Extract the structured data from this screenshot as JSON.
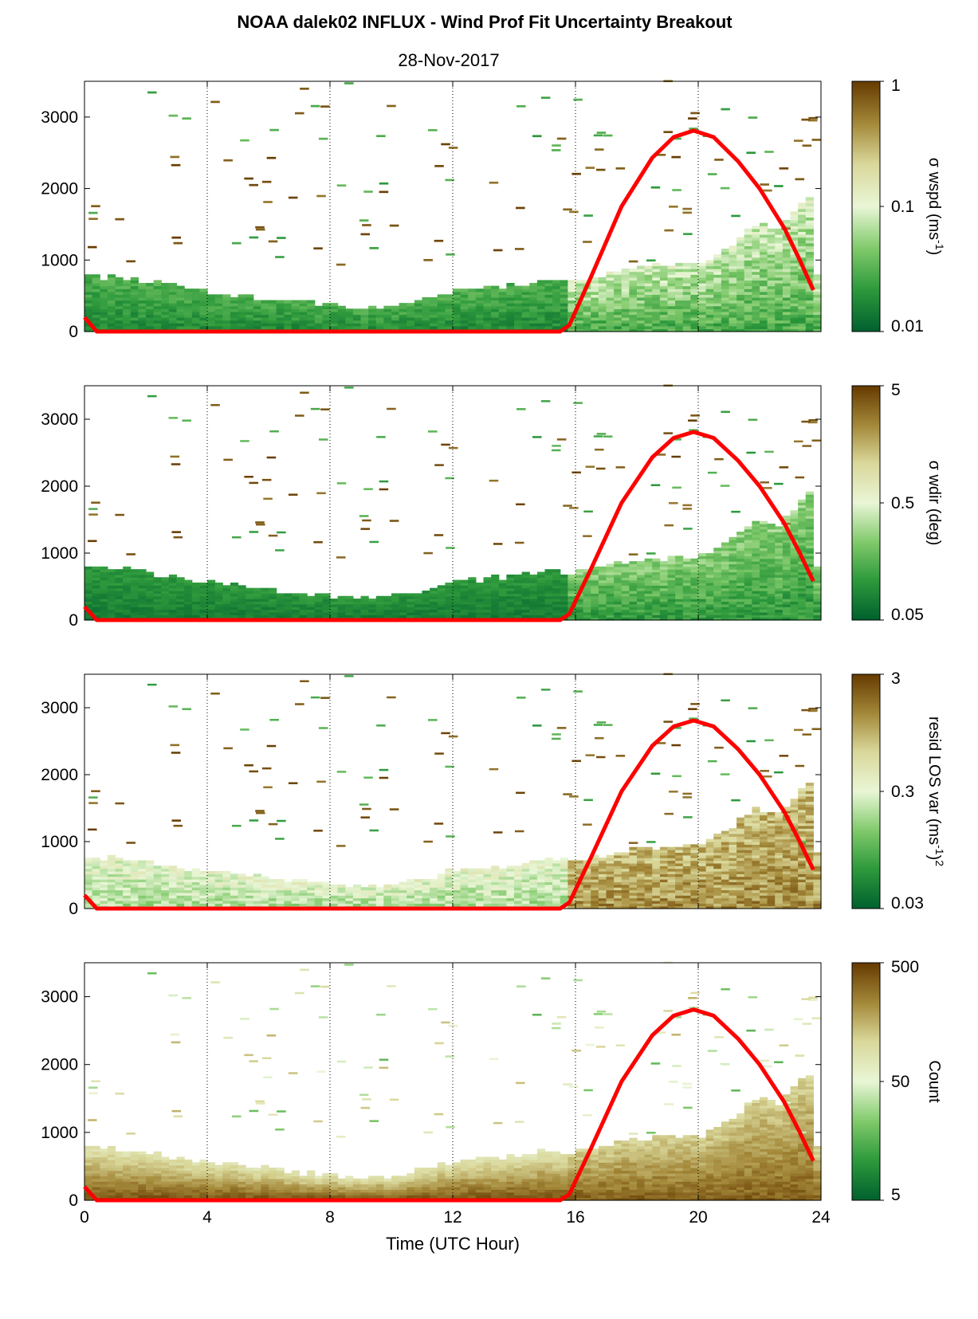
{
  "title": "NOAA dalek02 INFLUX - Wind Prof Fit Uncertainty Breakout",
  "subtitle": "28-Nov-2017",
  "colors": {
    "sun_curve": "#ff0000",
    "colormap": [
      "#00602e",
      "#2e9a3c",
      "#7fc96a",
      "#e9f6d6",
      "#d9d79a",
      "#a4893a",
      "#653a00"
    ]
  },
  "chart_data": [
    {
      "type": "heatmap",
      "xlim": [
        0,
        24
      ],
      "ylim": [
        0,
        3500
      ],
      "x_ticks": [
        "0",
        "4",
        "8",
        "12",
        "16",
        "20",
        "24"
      ],
      "y_ticks": [
        "0",
        "1000",
        "2000",
        "3000"
      ],
      "vertical_gridlines": [
        4,
        8,
        12,
        16,
        20
      ],
      "colorbar": {
        "scale": "log",
        "ticks": [
          "1",
          "0.1",
          "0.01"
        ],
        "label_main": "σ wspd (ms",
        "label_sup": "-1",
        "label_tail": ")"
      },
      "sun_elevation_curve": {
        "x": [
          0.0,
          0.4,
          15.5,
          15.8,
          16.5,
          17.5,
          18.5,
          19.2,
          19.85,
          20.5,
          21.3,
          22.0,
          22.8,
          23.3,
          23.75
        ],
        "y": [
          200,
          0,
          0,
          90,
          760,
          1750,
          2430,
          2720,
          2810,
          2720,
          2380,
          2000,
          1450,
          1010,
          580
        ]
      }
    },
    {
      "type": "heatmap",
      "xlim": [
        0,
        24
      ],
      "ylim": [
        0,
        3500
      ],
      "x_ticks": [
        "0",
        "4",
        "8",
        "12",
        "16",
        "20",
        "24"
      ],
      "y_ticks": [
        "0",
        "1000",
        "2000",
        "3000"
      ],
      "vertical_gridlines": [
        4,
        8,
        12,
        16,
        20
      ],
      "colorbar": {
        "scale": "log",
        "ticks": [
          "5",
          "0.5",
          "0.05"
        ],
        "label_main": "σ wdir (deg)",
        "label_sup": "",
        "label_tail": ""
      },
      "sun_elevation_curve": {
        "x": [
          0.0,
          0.4,
          15.5,
          15.8,
          16.5,
          17.5,
          18.5,
          19.2,
          19.85,
          20.5,
          21.3,
          22.0,
          22.8,
          23.3,
          23.75
        ],
        "y": [
          200,
          0,
          0,
          90,
          760,
          1750,
          2430,
          2720,
          2810,
          2720,
          2380,
          2000,
          1450,
          1010,
          580
        ]
      }
    },
    {
      "type": "heatmap",
      "xlim": [
        0,
        24
      ],
      "ylim": [
        0,
        3500
      ],
      "x_ticks": [
        "0",
        "4",
        "8",
        "12",
        "16",
        "20",
        "24"
      ],
      "y_ticks": [
        "0",
        "1000",
        "2000",
        "3000"
      ],
      "vertical_gridlines": [
        4,
        8,
        12,
        16,
        20
      ],
      "colorbar": {
        "scale": "log",
        "ticks": [
          "3",
          "0.3",
          "0.03"
        ],
        "label_main": "resid LOS var (ms",
        "label_sup": "-1",
        "label_tail": ")",
        "label_sup2": "2"
      },
      "sun_elevation_curve": {
        "x": [
          0.0,
          0.4,
          15.5,
          15.8,
          16.5,
          17.5,
          18.5,
          19.2,
          19.85,
          20.5,
          21.3,
          22.0,
          22.8,
          23.3,
          23.75
        ],
        "y": [
          200,
          0,
          0,
          90,
          760,
          1750,
          2430,
          2720,
          2810,
          2720,
          2380,
          2000,
          1450,
          1010,
          580
        ]
      }
    },
    {
      "type": "heatmap",
      "xlim": [
        0,
        24
      ],
      "ylim": [
        0,
        3500
      ],
      "x_ticks": [
        "0",
        "4",
        "8",
        "12",
        "16",
        "20",
        "24"
      ],
      "y_ticks": [
        "0",
        "1000",
        "2000",
        "3000"
      ],
      "vertical_gridlines": [
        4,
        8,
        12,
        16,
        20
      ],
      "xlabel": "Time (UTC Hour)",
      "colorbar": {
        "scale": "log",
        "ticks": [
          "500",
          "50",
          "5"
        ],
        "label_main": "Count",
        "label_sup": "",
        "label_tail": ""
      },
      "sun_elevation_curve": {
        "x": [
          0.0,
          0.4,
          15.5,
          15.8,
          16.5,
          17.5,
          18.5,
          19.2,
          19.85,
          20.5,
          21.3,
          22.0,
          22.8,
          23.3,
          23.75
        ],
        "y": [
          200,
          0,
          0,
          90,
          760,
          1750,
          2430,
          2720,
          2810,
          2720,
          2380,
          2000,
          1450,
          1010,
          580
        ]
      }
    }
  ]
}
